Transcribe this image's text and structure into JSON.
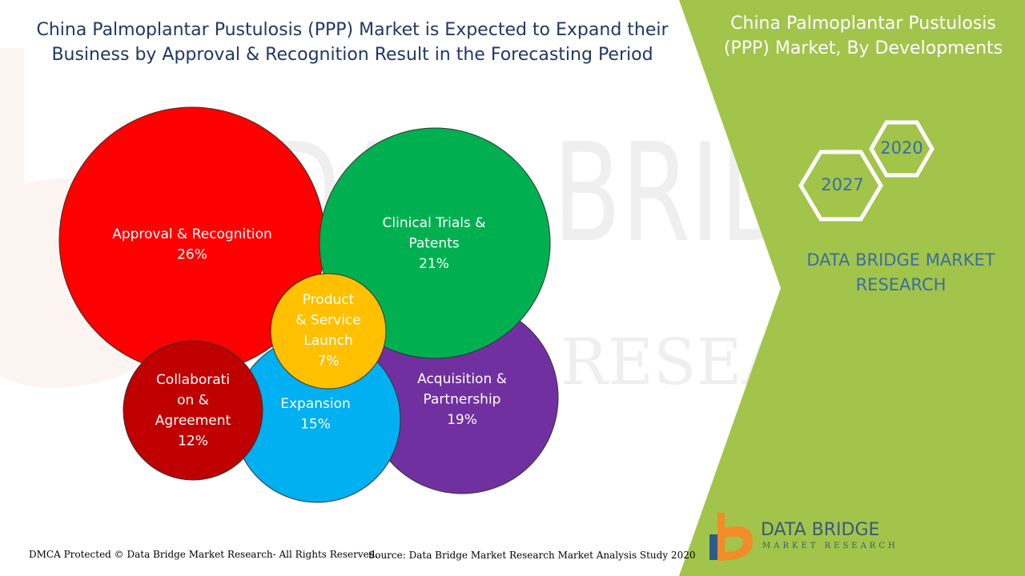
{
  "title": "China Palmoplantar Pustulosis (PPP) Market is Expected to Expand their Business by Approval & Recognition Result in the Forecasting Period",
  "side_panel": {
    "title": "China Palmoplantar Pustulosis (PPP) Market, By Developments",
    "year_start": "2020",
    "year_end": "2027",
    "brand_line1": "DATA BRIDGE MARKET",
    "brand_line2": "RESEARCH"
  },
  "watermark": {
    "line1": "DATA BRIDGE",
    "line2": "RESEARCH"
  },
  "logo": {
    "name": "DATA BRIDGE",
    "tagline": "MARKET RESEARCH"
  },
  "footer": {
    "copyright": "DMCA Protected © Data Bridge Market Research- All Rights Reserved.",
    "source": "Source: Data Bridge Market Research Market Analysis Study 2020"
  },
  "colors": {
    "title": "#1f3864",
    "panel_green": "#a2c44a",
    "accent_blue": "#3a6ea5"
  },
  "chart_data": {
    "type": "bubble",
    "title": "",
    "series": [
      {
        "label": [
          "Approval & Recognition",
          "26%"
        ],
        "value": 26,
        "color": "#fe0000"
      },
      {
        "label": [
          "Acquisition &",
          "Partnership",
          "19%"
        ],
        "value": 19,
        "color": "#7030a0"
      },
      {
        "label": [
          "Expansion",
          "15%"
        ],
        "value": 15,
        "color": "#00b0f0"
      },
      {
        "label": [
          "Clinical Trials &",
          "Patents",
          "21%"
        ],
        "value": 21,
        "color": "#00b050"
      },
      {
        "label": [
          "Collaborati",
          "on &",
          "Agreement",
          "12%"
        ],
        "value": 12,
        "color": "#c00000"
      },
      {
        "label": [
          "Product",
          "& Service",
          "Launch",
          "7%"
        ],
        "value": 7,
        "color": "#ffc000"
      }
    ]
  }
}
